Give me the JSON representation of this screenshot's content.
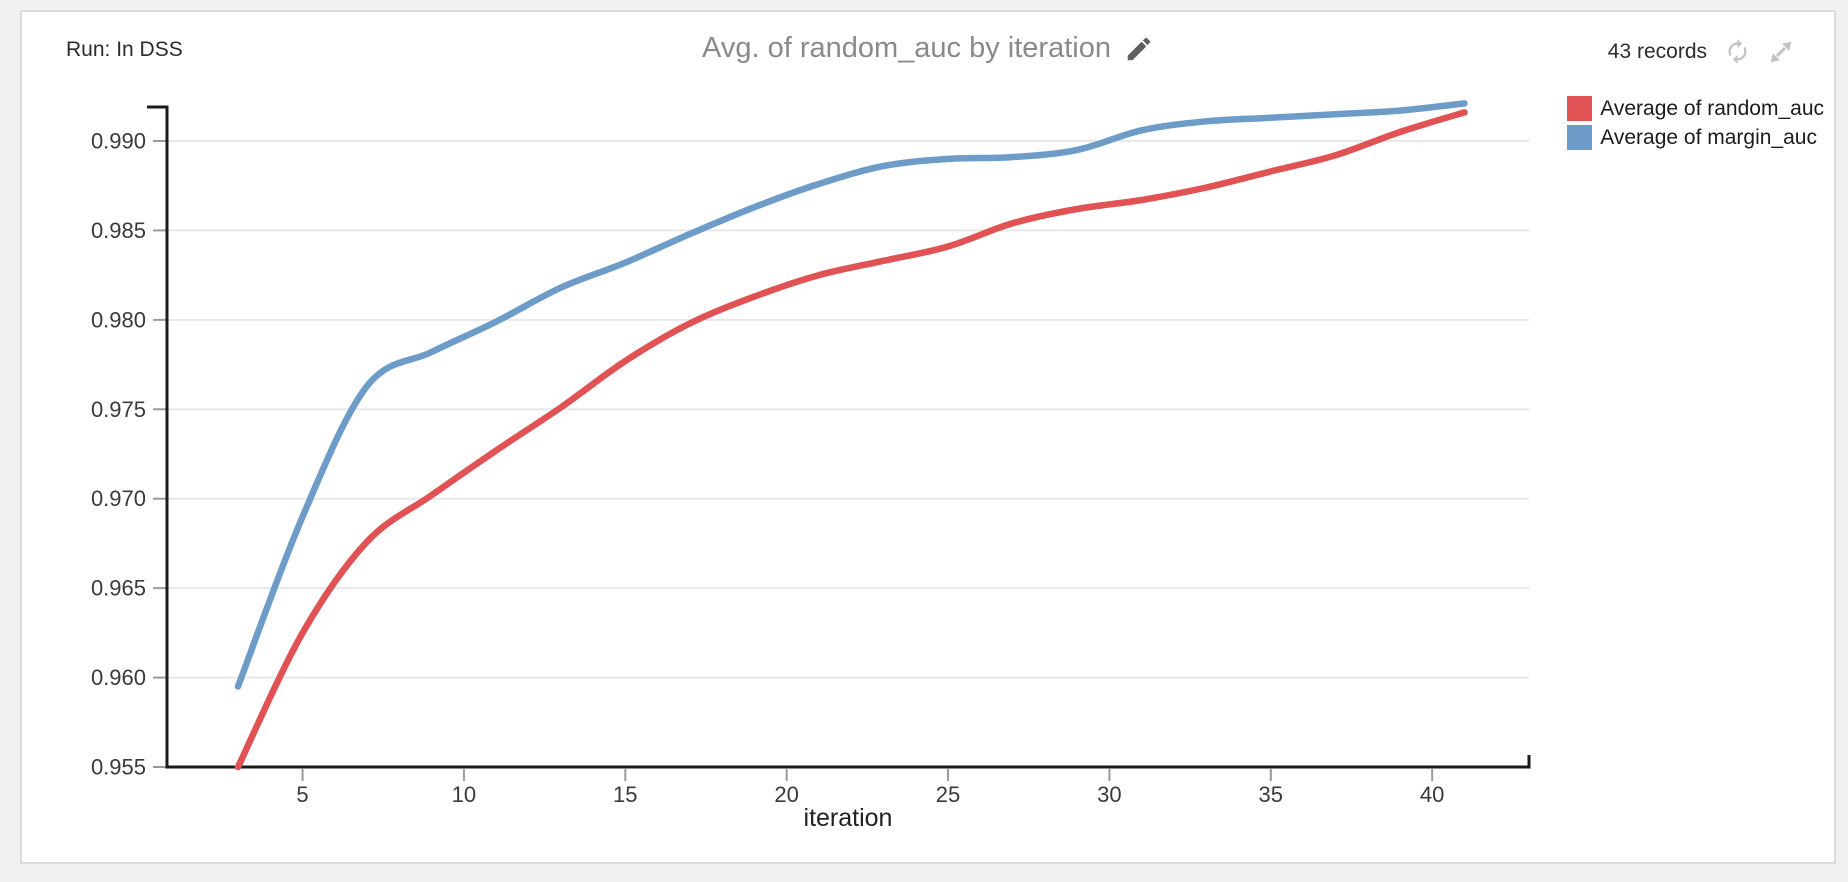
{
  "panel": {
    "run_label": "Run: In DSS",
    "title": "Avg. of random_auc by iteration",
    "records_label": "43 records"
  },
  "colors": {
    "page_background": "#f1f1ef",
    "card_background": "#ffffff",
    "card_border": "#dbdbdb",
    "grid": "#e8e8e8",
    "axis": "#1b1b1b",
    "tick": "#9a9a9a",
    "tick_text": "#3a3a3a",
    "title_text": "#8a8a8a",
    "icon_gray": "#c2c2c2",
    "pencil_gray": "#5f5f5f",
    "series_red": "#e15254",
    "series_blue": "#6e9cc9"
  },
  "legend": {
    "position": "top-right",
    "items": [
      {
        "label": "Average of random_auc",
        "color": "#e15254"
      },
      {
        "label": "Average of margin_auc",
        "color": "#6e9cc9"
      }
    ]
  },
  "chart_data": {
    "type": "line",
    "title": "Avg. of random_auc by iteration",
    "xlabel": "iteration",
    "ylabel": "",
    "records": 43,
    "grid": "horizontal",
    "legend_position": "top-right",
    "x_ticks": [
      5,
      10,
      15,
      20,
      25,
      30,
      35,
      40
    ],
    "y_ticks": [
      0.955,
      0.96,
      0.965,
      0.97,
      0.975,
      0.98,
      0.985,
      0.99
    ],
    "xlim": [
      0.8,
      43.0
    ],
    "ylim": [
      0.955,
      0.9919
    ],
    "x": [
      3,
      5,
      7,
      9,
      11,
      13,
      15,
      17,
      19,
      21,
      23,
      25,
      27,
      29,
      31,
      33,
      35,
      37,
      39,
      41
    ],
    "series": [
      {
        "name": "Average of random_auc",
        "color": "#e15254",
        "values": [
          0.955,
          0.9625,
          0.9676,
          0.9702,
          0.9727,
          0.9751,
          0.9777,
          0.9798,
          0.9813,
          0.9825,
          0.9833,
          0.9841,
          0.9854,
          0.9862,
          0.9867,
          0.9874,
          0.9883,
          0.9892,
          0.9905,
          0.9916
        ]
      },
      {
        "name": "Average of margin_auc",
        "color": "#6e9cc9",
        "values": [
          0.9595,
          0.969,
          0.9763,
          0.9782,
          0.9799,
          0.9818,
          0.9832,
          0.9848,
          0.9863,
          0.9876,
          0.9886,
          0.989,
          0.9891,
          0.9895,
          0.9906,
          0.9911,
          0.9913,
          0.9915,
          0.9917,
          0.9921
        ]
      }
    ]
  }
}
